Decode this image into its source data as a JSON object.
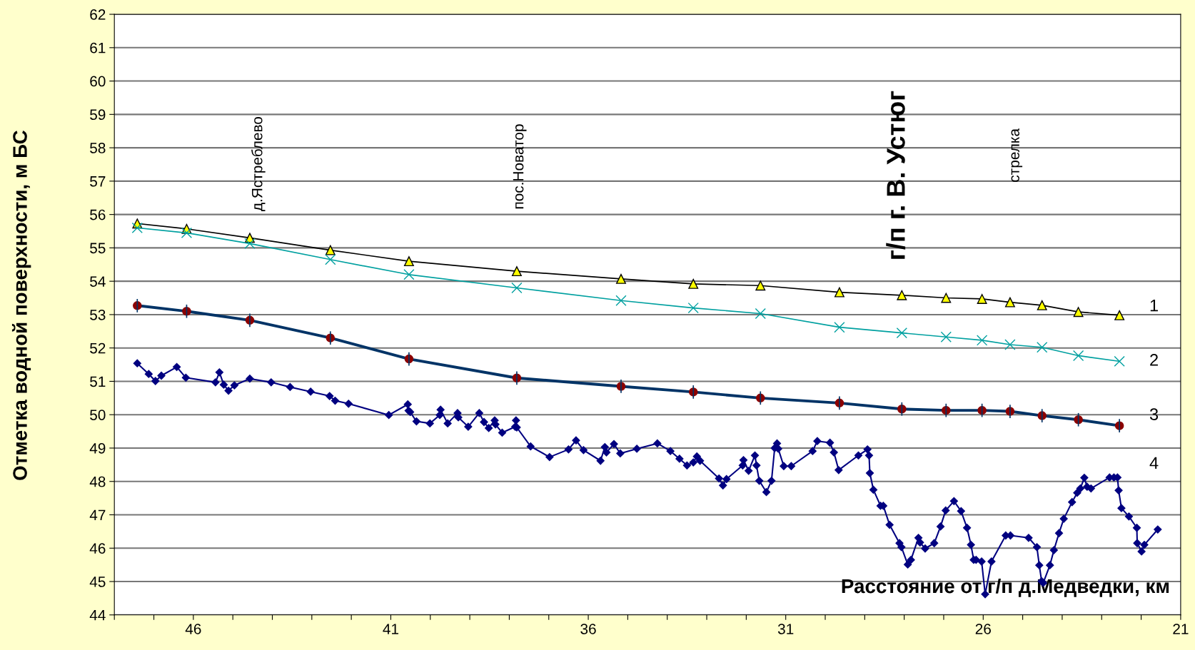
{
  "chart_data": {
    "type": "line",
    "xlabel": "Расстояние от г/п д.Медведки, км",
    "ylabel": "Отметка водной поверхности, м БС",
    "xlim": [
      48,
      21
    ],
    "ylim": [
      44,
      62
    ],
    "xticks": [
      {
        "value": 48,
        "label": null
      },
      {
        "value": 47,
        "label": null
      },
      46,
      {
        "value": 45,
        "label": null
      },
      {
        "value": 44,
        "label": null
      },
      {
        "value": 43,
        "label": null
      },
      {
        "value": 42,
        "label": null
      },
      41,
      {
        "value": 40,
        "label": null
      },
      {
        "value": 39,
        "label": null
      },
      {
        "value": 38,
        "label": null
      },
      {
        "value": 37,
        "label": null
      },
      36,
      {
        "value": 35,
        "label": null
      },
      {
        "value": 34,
        "label": null
      },
      {
        "value": 33,
        "label": null
      },
      {
        "value": 32,
        "label": null
      },
      31,
      {
        "value": 30,
        "label": null
      },
      {
        "value": 29,
        "label": null
      },
      {
        "value": 28,
        "label": null
      },
      {
        "value": 27,
        "label": null
      },
      26,
      {
        "value": 25,
        "label": null
      },
      {
        "value": 24,
        "label": null
      },
      {
        "value": 23,
        "label": null
      },
      {
        "value": 22,
        "label": null
      },
      21
    ],
    "yticks": [
      44,
      45,
      46,
      47,
      48,
      49,
      50,
      51,
      52,
      53,
      54,
      55,
      56,
      57,
      58,
      59,
      60,
      61,
      62
    ],
    "grid": "y",
    "legend": false,
    "annotations": [
      "д.Ястреблево",
      "пос.Новатор",
      "г/п г. В. Устюг",
      "стрелка"
    ],
    "series": [
      {
        "name": "1",
        "color": "#000000",
        "marker": "triangle",
        "x": [
          47.42,
          46.17,
          44.57,
          42.53,
          40.54,
          37.81,
          35.17,
          33.34,
          31.64,
          29.64,
          28.06,
          26.94,
          26.03,
          25.32,
          24.51,
          23.59,
          22.55
        ],
        "values": [
          55.73,
          55.57,
          55.3,
          54.93,
          54.6,
          54.3,
          54.07,
          53.92,
          53.87,
          53.67,
          53.58,
          53.5,
          53.47,
          53.37,
          53.28,
          53.08,
          52.98
        ]
      },
      {
        "name": "2",
        "color": "#00a0a0",
        "marker": "cross",
        "x": [
          47.42,
          46.17,
          44.57,
          42.53,
          40.54,
          37.81,
          35.17,
          33.34,
          31.64,
          29.64,
          28.06,
          26.94,
          26.03,
          25.32,
          24.51,
          23.59,
          22.55
        ],
        "values": [
          55.6,
          55.45,
          55.13,
          54.65,
          54.2,
          53.8,
          53.42,
          53.2,
          53.03,
          52.62,
          52.45,
          52.33,
          52.23,
          52.1,
          52.02,
          51.77,
          51.6
        ]
      },
      {
        "name": "3",
        "color": "#003366",
        "marker": "circle",
        "x": [
          47.42,
          46.17,
          44.57,
          42.53,
          40.54,
          37.81,
          35.17,
          33.34,
          31.64,
          29.64,
          28.06,
          26.94,
          26.03,
          25.32,
          24.51,
          23.59,
          22.55
        ],
        "values": [
          53.27,
          53.1,
          52.83,
          52.3,
          51.67,
          51.1,
          50.85,
          50.68,
          50.5,
          50.35,
          50.17,
          50.13,
          50.13,
          50.1,
          49.97,
          49.85,
          49.67
        ],
        "errors": [
          0.2,
          0.2,
          0.2,
          0.2,
          0.2,
          0.2,
          0.2,
          0.2,
          0.2,
          0.2,
          0.2,
          0.2,
          0.2,
          0.2,
          0.2,
          0.2,
          0.2
        ]
      },
      {
        "name": "4",
        "color": "#000080",
        "marker": "diamond",
        "x": [
          47.42,
          47.13,
          46.96,
          46.81,
          46.42,
          46.19,
          45.44,
          45.34,
          45.23,
          45.11,
          44.96,
          44.57,
          44.03,
          43.55,
          43.03,
          42.55,
          42.41,
          42.07,
          41.05,
          40.57,
          40.55,
          40.51,
          40.35,
          40.01,
          39.76,
          39.74,
          39.56,
          39.31,
          39.29,
          39.04,
          38.76,
          38.64,
          38.52,
          38.37,
          38.35,
          38.18,
          37.85,
          37.83,
          37.81,
          37.46,
          36.98,
          36.5,
          36.31,
          36.12,
          35.69,
          35.58,
          35.54,
          35.35,
          35.19,
          34.77,
          34.25,
          33.92,
          33.69,
          33.5,
          33.34,
          33.25,
          33.17,
          32.69,
          32.59,
          32.5,
          32.09,
          32.07,
          31.94,
          31.78,
          31.74,
          31.67,
          31.49,
          31.36,
          31.28,
          31.22,
          31.19,
          31.05,
          30.86,
          30.32,
          30.2,
          29.88,
          29.78,
          29.66,
          29.16,
          28.93,
          28.89,
          28.87,
          28.78,
          28.6,
          28.53,
          28.37,
          28.12,
          28.07,
          27.91,
          27.83,
          27.64,
          27.6,
          27.47,
          27.24,
          27.08,
          26.95,
          26.74,
          26.56,
          26.41,
          26.31,
          26.24,
          26.18,
          26.04,
          25.95,
          25.79,
          25.43,
          25.31,
          24.85,
          24.64,
          24.58,
          24.52,
          24.48,
          24.31,
          24.21,
          24.08,
          23.96,
          23.75,
          23.62,
          23.54,
          23.44,
          23.37,
          23.27,
          22.8,
          22.69,
          22.6,
          22.57,
          22.5,
          22.31,
          22.11,
          22.1,
          21.99,
          21.92,
          21.58
        ],
        "values": [
          51.54,
          51.22,
          51.01,
          51.17,
          51.43,
          51.11,
          50.97,
          51.27,
          50.9,
          50.72,
          50.88,
          51.08,
          50.97,
          50.83,
          50.69,
          50.56,
          50.42,
          50.33,
          49.99,
          50.31,
          50.12,
          50.08,
          49.8,
          49.74,
          49.99,
          50.15,
          49.74,
          50.05,
          49.92,
          49.64,
          50.05,
          49.78,
          49.6,
          49.83,
          49.71,
          49.46,
          49.64,
          49.83,
          49.62,
          49.05,
          48.73,
          48.96,
          49.23,
          48.94,
          48.62,
          49.03,
          48.87,
          49.12,
          48.84,
          48.98,
          49.14,
          48.91,
          48.68,
          48.48,
          48.57,
          48.75,
          48.62,
          48.09,
          47.88,
          48.07,
          48.48,
          48.64,
          48.32,
          48.78,
          48.48,
          48.02,
          47.68,
          48.02,
          49.0,
          49.14,
          48.98,
          48.46,
          48.46,
          48.91,
          49.21,
          49.16,
          48.87,
          48.34,
          48.78,
          48.96,
          48.78,
          48.25,
          47.75,
          47.27,
          47.27,
          46.7,
          46.15,
          46.03,
          45.51,
          45.65,
          46.31,
          46.17,
          45.99,
          46.15,
          46.65,
          47.13,
          47.41,
          47.11,
          46.61,
          46.1,
          45.65,
          45.65,
          45.6,
          44.62,
          45.6,
          46.38,
          46.38,
          46.31,
          46.03,
          45.49,
          45.01,
          44.96,
          45.49,
          45.94,
          46.45,
          46.88,
          47.38,
          47.66,
          47.79,
          48.11,
          47.84,
          47.79,
          48.12,
          48.12,
          48.12,
          47.73,
          47.2,
          46.95,
          46.61,
          46.15,
          45.9,
          46.1,
          46.56
        ]
      }
    ]
  }
}
